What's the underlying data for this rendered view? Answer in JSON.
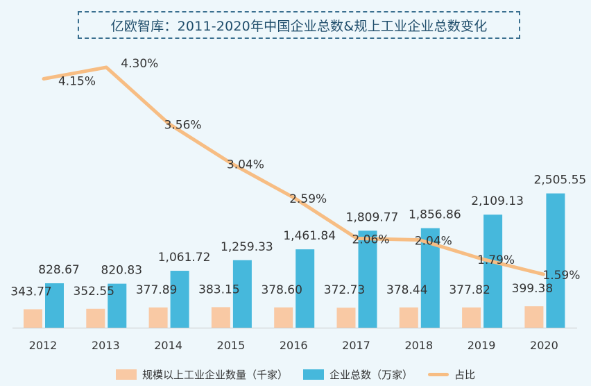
{
  "chart_data": {
    "type": "bar",
    "title": "亿欧智库：2011-2020年中国企业总数&规上工业企业总数变化",
    "categories": [
      "2012",
      "2013",
      "2014",
      "2015",
      "2016",
      "2017",
      "2018",
      "2019",
      "2020"
    ],
    "series": [
      {
        "name": "规模以上工业企业数量（千家）",
        "type": "bar",
        "color": "#f9c9a4",
        "values": [
          343.77,
          352.55,
          377.89,
          383.15,
          378.6,
          372.73,
          378.44,
          377.82,
          399.38
        ],
        "labels": [
          "343.77",
          "352.55",
          "377.89",
          "383.15",
          "378.60",
          "372.73",
          "378.44",
          "377.82",
          "399.38"
        ]
      },
      {
        "name": "企业总数（万家）",
        "type": "bar",
        "color": "#46b8dc",
        "values": [
          828.67,
          820.83,
          1061.72,
          1259.33,
          1461.84,
          1809.77,
          1856.86,
          2109.13,
          2505.55
        ],
        "labels": [
          "828.67",
          "820.83",
          "1,061.72",
          "1,259.33",
          "1,461.84",
          "1,809.77",
          "1,856.86",
          "2,109.13",
          "2,505.55"
        ]
      },
      {
        "name": "占比",
        "type": "line",
        "color": "#f7bd83",
        "values": [
          4.15,
          4.3,
          3.56,
          3.04,
          2.59,
          2.06,
          2.04,
          1.79,
          1.59
        ],
        "labels": [
          "4.15%",
          "4.30%",
          "3.56%",
          "3.04%",
          "2.59%",
          "2.06%",
          "2.04%",
          "1.79%",
          "1.59%"
        ]
      }
    ],
    "legend_position": "bottom",
    "grid": false
  }
}
